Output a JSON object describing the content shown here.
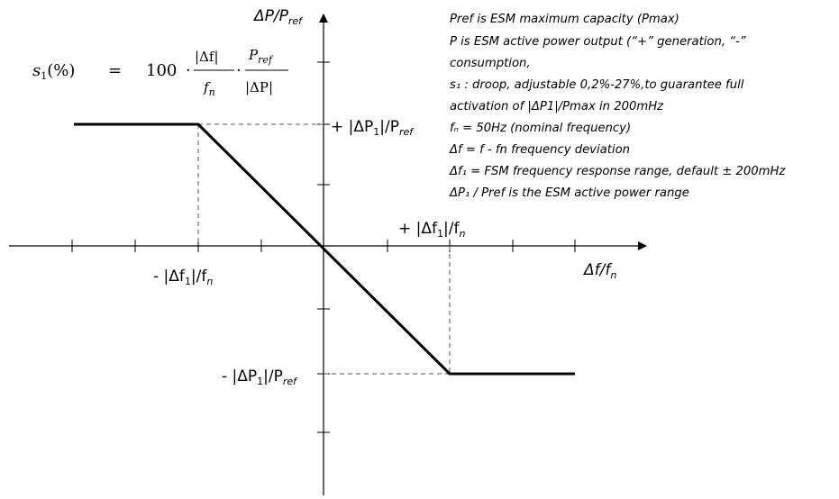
{
  "axes": {
    "y_label": "ΔP/P",
    "y_label_sub": "ref",
    "x_label": "Δf/f",
    "x_label_sub": "n"
  },
  "points": {
    "pos_p_prefix": "+ |ΔP",
    "pos_p_mid": "|/P",
    "pos_p_sub1": "1",
    "pos_p_sub2": "ref",
    "neg_p_prefix": "- |ΔP",
    "neg_p_mid": "|/P",
    "neg_p_sub1": "1",
    "neg_p_sub2": "ref",
    "pos_f_prefix": "+ |Δf",
    "pos_f_mid": "|/f",
    "pos_f_sub1": "1",
    "pos_f_sub2": "n",
    "neg_f_prefix": "- |Δf",
    "neg_f_mid": "|/f",
    "neg_f_sub1": "1",
    "neg_f_sub2": "n"
  },
  "formula": {
    "lhs": "s",
    "lhs_sub": "1",
    "lhs_tail": "(%)",
    "equals": "=",
    "coef": "100",
    "dot": "·",
    "num1": "|Δf|",
    "den1": "f",
    "den1_sub": "n",
    "num2": "P",
    "num2_sub": "ref",
    "den2": "|ΔP|"
  },
  "notes": [
    "Pref is ESM maximum capacity (Pmax)",
    "P is ESM active power output (“+” generation, “-”",
    "consumption,",
    "s₁ : droop, adjustable 0,2%-27%,to guarantee full",
    "activation of |ΔP1|/Pmax in 200mHz",
    "fₙ = 50Hz (nominal frequency)",
    "Δf = f - fn frequency deviation",
    "Δf₁ = FSM frequency response range, default ± 200mHz",
    "ΔP₁ / Pref is the ESM active power range"
  ]
}
